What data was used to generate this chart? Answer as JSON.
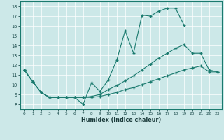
{
  "xlabel": "Humidex (Indice chaleur)",
  "bg_color": "#cce8e8",
  "line_color": "#1a7a6e",
  "xlim": [
    -0.5,
    23.5
  ],
  "ylim": [
    7.5,
    18.5
  ],
  "xticks": [
    0,
    1,
    2,
    3,
    4,
    5,
    6,
    7,
    8,
    9,
    10,
    11,
    12,
    13,
    14,
    15,
    16,
    17,
    18,
    19,
    20,
    21,
    22,
    23
  ],
  "yticks": [
    8,
    9,
    10,
    11,
    12,
    13,
    14,
    15,
    16,
    17,
    18
  ],
  "series1_x": [
    0,
    1,
    2,
    3,
    4,
    5,
    6,
    7,
    8,
    9,
    10,
    11,
    12,
    13,
    14,
    15,
    16,
    17,
    18,
    19
  ],
  "series1_y": [
    11.5,
    10.3,
    9.2,
    8.7,
    8.7,
    8.7,
    8.7,
    8.0,
    10.2,
    9.3,
    10.5,
    12.5,
    15.5,
    13.2,
    17.1,
    17.0,
    17.5,
    17.8,
    17.8,
    16.1
  ],
  "series2_x": [
    0,
    1,
    2,
    3,
    4,
    5,
    6,
    7,
    8,
    9,
    10,
    11,
    12,
    13,
    14,
    15,
    16,
    17,
    18,
    19,
    20,
    21,
    22,
    23
  ],
  "series2_y": [
    11.5,
    10.3,
    9.2,
    8.7,
    8.7,
    8.7,
    8.7,
    8.7,
    8.8,
    9.0,
    9.5,
    9.9,
    10.4,
    10.9,
    11.5,
    12.1,
    12.7,
    13.2,
    13.7,
    14.1,
    13.2,
    13.2,
    11.5,
    11.3
  ],
  "series3_x": [
    0,
    1,
    2,
    3,
    4,
    5,
    6,
    7,
    8,
    9,
    10,
    11,
    12,
    13,
    14,
    15,
    16,
    17,
    18,
    19,
    20,
    21,
    22,
    23
  ],
  "series3_y": [
    11.5,
    10.3,
    9.2,
    8.7,
    8.7,
    8.7,
    8.7,
    8.7,
    8.7,
    8.8,
    9.0,
    9.2,
    9.5,
    9.7,
    10.0,
    10.3,
    10.6,
    10.9,
    11.2,
    11.5,
    11.7,
    11.9,
    11.3,
    11.3
  ]
}
